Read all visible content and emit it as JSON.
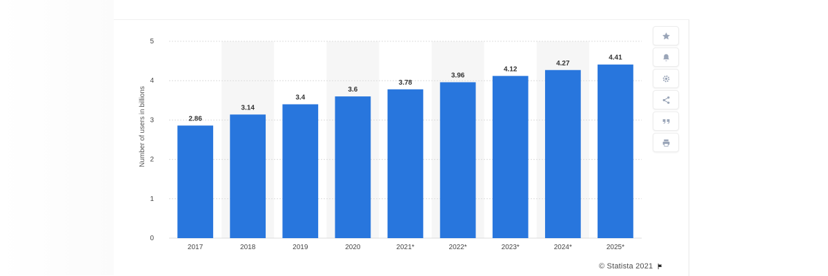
{
  "chart_data": {
    "type": "bar",
    "categories": [
      "2017",
      "2018",
      "2019",
      "2020",
      "2021*",
      "2022*",
      "2023*",
      "2024*",
      "2025*"
    ],
    "values": [
      2.86,
      3.14,
      3.4,
      3.6,
      3.78,
      3.96,
      4.12,
      4.27,
      4.41
    ],
    "value_labels": [
      "2.86",
      "3.14",
      "3.4",
      "3.6",
      "3.78",
      "3.96",
      "4.12",
      "4.27",
      "4.41"
    ],
    "ylabel": "Number of users in billions",
    "xlabel": "",
    "ylim": [
      0,
      5
    ],
    "yticks": [
      "0",
      "1",
      "2",
      "3",
      "4",
      "5"
    ],
    "grid": true,
    "bar_color": "#2876dd",
    "alt_band_color": "#f6f6f6"
  },
  "toolbar": [
    {
      "name": "favorite-button",
      "icon": "star-icon"
    },
    {
      "name": "notification-button",
      "icon": "bell-icon"
    },
    {
      "name": "settings-button",
      "icon": "gear-icon"
    },
    {
      "name": "share-button",
      "icon": "share-icon"
    },
    {
      "name": "cite-button",
      "icon": "quote-icon"
    },
    {
      "name": "print-button",
      "icon": "print-icon"
    }
  ],
  "credit": {
    "text": "© Statista 2021",
    "icon": "flag-icon"
  }
}
